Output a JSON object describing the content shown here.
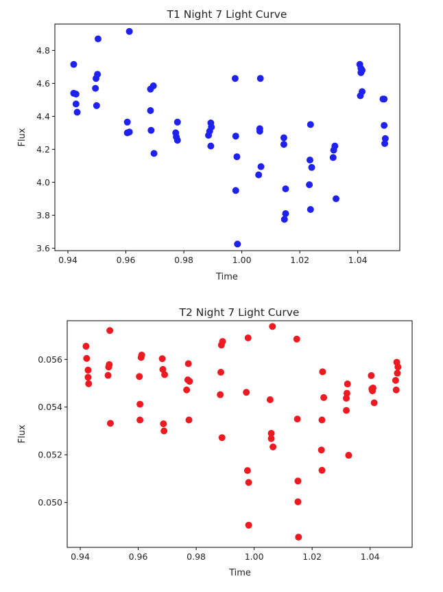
{
  "chart_data": [
    {
      "type": "scatter",
      "title": "T1 Night 7 Light Curve",
      "xlabel": "Time",
      "ylabel": "Flux",
      "xlim": [
        0.9355,
        1.0545
      ],
      "ylim": [
        3.585,
        4.96
      ],
      "xticks": [
        0.94,
        0.96,
        0.98,
        1.0,
        1.02,
        1.04
      ],
      "xtick_labels": [
        "0.94",
        "0.96",
        "0.98",
        "1.00",
        "1.02",
        "1.04"
      ],
      "yticks": [
        3.6,
        3.8,
        4.0,
        4.2,
        4.4,
        4.6,
        4.8
      ],
      "ytick_labels": [
        "3.6",
        "3.8",
        "4.0",
        "4.2",
        "4.4",
        "4.6",
        "4.8"
      ],
      "grid": false,
      "color": "#1f22ee",
      "points": [
        {
          "x": 0.942,
          "y": 4.715
        },
        {
          "x": 0.942,
          "y": 4.54
        },
        {
          "x": 0.9428,
          "y": 4.535
        },
        {
          "x": 0.9428,
          "y": 4.475
        },
        {
          "x": 0.9432,
          "y": 4.425
        },
        {
          "x": 0.9495,
          "y": 4.57
        },
        {
          "x": 0.9497,
          "y": 4.63
        },
        {
          "x": 0.9499,
          "y": 4.465
        },
        {
          "x": 0.9502,
          "y": 4.655
        },
        {
          "x": 0.9504,
          "y": 4.87
        },
        {
          "x": 0.9605,
          "y": 4.365
        },
        {
          "x": 0.9605,
          "y": 4.3
        },
        {
          "x": 0.9612,
          "y": 4.305
        },
        {
          "x": 0.9612,
          "y": 4.915
        },
        {
          "x": 0.9685,
          "y": 4.565
        },
        {
          "x": 0.9685,
          "y": 4.435
        },
        {
          "x": 0.9687,
          "y": 4.315
        },
        {
          "x": 0.9695,
          "y": 4.585
        },
        {
          "x": 0.9697,
          "y": 4.175
        },
        {
          "x": 0.9772,
          "y": 4.3
        },
        {
          "x": 0.9774,
          "y": 4.275
        },
        {
          "x": 0.9778,
          "y": 4.365
        },
        {
          "x": 0.9778,
          "y": 4.255
        },
        {
          "x": 0.9885,
          "y": 4.285
        },
        {
          "x": 0.9889,
          "y": 4.31
        },
        {
          "x": 0.9893,
          "y": 4.36
        },
        {
          "x": 0.9893,
          "y": 4.22
        },
        {
          "x": 0.9895,
          "y": 4.335
        },
        {
          "x": 0.9977,
          "y": 4.63
        },
        {
          "x": 0.9979,
          "y": 4.28
        },
        {
          "x": 0.9979,
          "y": 3.95
        },
        {
          "x": 0.9983,
          "y": 4.155
        },
        {
          "x": 0.9985,
          "y": 3.625
        },
        {
          "x": 1.0058,
          "y": 4.045
        },
        {
          "x": 1.0062,
          "y": 4.325
        },
        {
          "x": 1.0062,
          "y": 4.31
        },
        {
          "x": 1.0064,
          "y": 4.63
        },
        {
          "x": 1.0066,
          "y": 4.095
        },
        {
          "x": 1.0145,
          "y": 4.27
        },
        {
          "x": 1.0145,
          "y": 4.23
        },
        {
          "x": 1.0147,
          "y": 3.775
        },
        {
          "x": 1.0151,
          "y": 3.81
        },
        {
          "x": 1.0151,
          "y": 3.96
        },
        {
          "x": 1.0233,
          "y": 3.985
        },
        {
          "x": 1.0235,
          "y": 4.135
        },
        {
          "x": 1.0237,
          "y": 4.35
        },
        {
          "x": 1.0237,
          "y": 3.835
        },
        {
          "x": 1.0241,
          "y": 4.09
        },
        {
          "x": 1.0315,
          "y": 4.15
        },
        {
          "x": 1.0317,
          "y": 4.195
        },
        {
          "x": 1.0321,
          "y": 4.22
        },
        {
          "x": 1.0325,
          "y": 3.9
        },
        {
          "x": 1.0407,
          "y": 4.715
        },
        {
          "x": 1.0409,
          "y": 4.525
        },
        {
          "x": 1.0411,
          "y": 4.69
        },
        {
          "x": 1.0411,
          "y": 4.665
        },
        {
          "x": 1.0415,
          "y": 4.55
        },
        {
          "x": 1.0415,
          "y": 4.68
        },
        {
          "x": 1.0487,
          "y": 4.505
        },
        {
          "x": 1.0491,
          "y": 4.505
        },
        {
          "x": 1.0491,
          "y": 4.345
        },
        {
          "x": 1.0493,
          "y": 4.235
        },
        {
          "x": 1.0495,
          "y": 4.265
        }
      ]
    },
    {
      "type": "scatter",
      "title": "T2 Night 7 Light Curve",
      "xlabel": "Time",
      "ylabel": "Flux",
      "xlim": [
        0.9355,
        1.0545
      ],
      "ylim": [
        0.04812,
        0.05762
      ],
      "xticks": [
        0.94,
        0.96,
        0.98,
        1.0,
        1.02,
        1.04
      ],
      "xtick_labels": [
        "0.94",
        "0.96",
        "0.98",
        "1.00",
        "1.02",
        "1.04"
      ],
      "yticks": [
        0.05,
        0.052,
        0.054,
        0.056
      ],
      "ytick_labels": [
        "0.050",
        "0.052",
        "0.054",
        "0.056"
      ],
      "grid": false,
      "color": "#ee1a22",
      "points": [
        {
          "x": 0.942,
          "y": 0.05655
        },
        {
          "x": 0.9422,
          "y": 0.05604
        },
        {
          "x": 0.9427,
          "y": 0.05555
        },
        {
          "x": 0.9427,
          "y": 0.05525
        },
        {
          "x": 0.9429,
          "y": 0.05498
        },
        {
          "x": 0.9496,
          "y": 0.05533
        },
        {
          "x": 0.9498,
          "y": 0.05568
        },
        {
          "x": 0.95,
          "y": 0.05578
        },
        {
          "x": 0.9502,
          "y": 0.05721
        },
        {
          "x": 0.9504,
          "y": 0.05332
        },
        {
          "x": 0.9604,
          "y": 0.05528
        },
        {
          "x": 0.9606,
          "y": 0.05412
        },
        {
          "x": 0.9606,
          "y": 0.05346
        },
        {
          "x": 0.961,
          "y": 0.05608
        },
        {
          "x": 0.9612,
          "y": 0.05618
        },
        {
          "x": 0.9683,
          "y": 0.05603
        },
        {
          "x": 0.9685,
          "y": 0.05558
        },
        {
          "x": 0.9687,
          "y": 0.0533
        },
        {
          "x": 0.9689,
          "y": 0.053
        },
        {
          "x": 0.9691,
          "y": 0.05536
        },
        {
          "x": 0.9767,
          "y": 0.05472
        },
        {
          "x": 0.9771,
          "y": 0.05514
        },
        {
          "x": 0.9773,
          "y": 0.05582
        },
        {
          "x": 0.9775,
          "y": 0.05346
        },
        {
          "x": 0.9777,
          "y": 0.05508
        },
        {
          "x": 0.9883,
          "y": 0.05452
        },
        {
          "x": 0.9885,
          "y": 0.05546
        },
        {
          "x": 0.9887,
          "y": 0.0566
        },
        {
          "x": 0.9889,
          "y": 0.05272
        },
        {
          "x": 0.9891,
          "y": 0.05675
        },
        {
          "x": 0.9973,
          "y": 0.05462
        },
        {
          "x": 0.9977,
          "y": 0.05134
        },
        {
          "x": 0.9979,
          "y": 0.0569
        },
        {
          "x": 0.9981,
          "y": 0.05084
        },
        {
          "x": 0.9981,
          "y": 0.04905
        },
        {
          "x": 1.0055,
          "y": 0.05431
        },
        {
          "x": 1.0059,
          "y": 0.0529
        },
        {
          "x": 1.0059,
          "y": 0.05268
        },
        {
          "x": 1.0063,
          "y": 0.05738
        },
        {
          "x": 1.0065,
          "y": 0.05233
        },
        {
          "x": 1.0147,
          "y": 0.05685
        },
        {
          "x": 1.0149,
          "y": 0.0535
        },
        {
          "x": 1.0151,
          "y": 0.0509
        },
        {
          "x": 1.0151,
          "y": 0.05003
        },
        {
          "x": 1.0153,
          "y": 0.04855
        },
        {
          "x": 1.0232,
          "y": 0.0522
        },
        {
          "x": 1.0234,
          "y": 0.05346
        },
        {
          "x": 1.0234,
          "y": 0.05135
        },
        {
          "x": 1.0236,
          "y": 0.05548
        },
        {
          "x": 1.024,
          "y": 0.0544
        },
        {
          "x": 1.0318,
          "y": 0.05437
        },
        {
          "x": 1.0318,
          "y": 0.05386
        },
        {
          "x": 1.032,
          "y": 0.05458
        },
        {
          "x": 1.0322,
          "y": 0.05497
        },
        {
          "x": 1.0326,
          "y": 0.05198
        },
        {
          "x": 1.0404,
          "y": 0.05532
        },
        {
          "x": 1.0406,
          "y": 0.05476
        },
        {
          "x": 1.0408,
          "y": 0.05468
        },
        {
          "x": 1.041,
          "y": 0.0548
        },
        {
          "x": 1.0414,
          "y": 0.05418
        },
        {
          "x": 1.0488,
          "y": 0.05512
        },
        {
          "x": 1.049,
          "y": 0.05472
        },
        {
          "x": 1.0492,
          "y": 0.05588
        },
        {
          "x": 1.0494,
          "y": 0.05542
        },
        {
          "x": 1.0496,
          "y": 0.05568
        }
      ]
    }
  ]
}
